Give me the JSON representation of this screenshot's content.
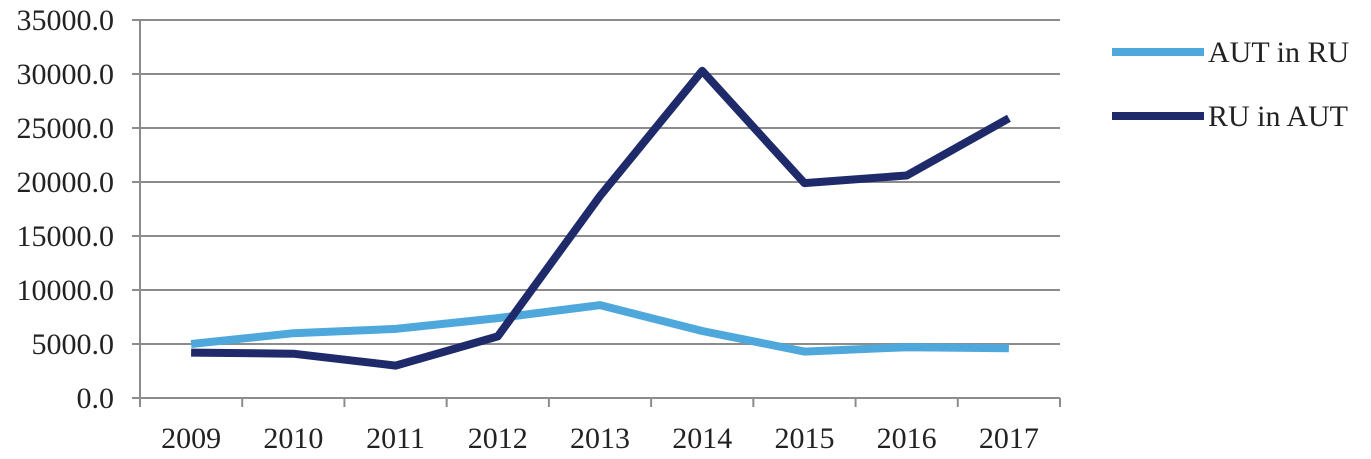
{
  "chart_data": {
    "type": "line",
    "categories": [
      "2009",
      "2010",
      "2011",
      "2012",
      "2013",
      "2014",
      "2015",
      "2016",
      "2017"
    ],
    "series": [
      {
        "name": "AUT in RU",
        "color": "#4fa8dc",
        "values": [
          5000,
          6000,
          6400,
          7400,
          8600,
          6200,
          4300,
          4700,
          4600
        ]
      },
      {
        "name": "RU in AUT",
        "color": "#1f2a6b",
        "values": [
          4200,
          4100,
          3000,
          5700,
          18700,
          30300,
          19900,
          20600,
          25900
        ]
      }
    ],
    "ylim": [
      0,
      35000
    ],
    "yticks": [
      "0.0",
      "5000.0",
      "10000.0",
      "15000.0",
      "20000.0",
      "25000.0",
      "30000.0",
      "35000.0"
    ],
    "grid": true,
    "legend_position": "right",
    "title": "",
    "xlabel": "",
    "ylabel": ""
  }
}
